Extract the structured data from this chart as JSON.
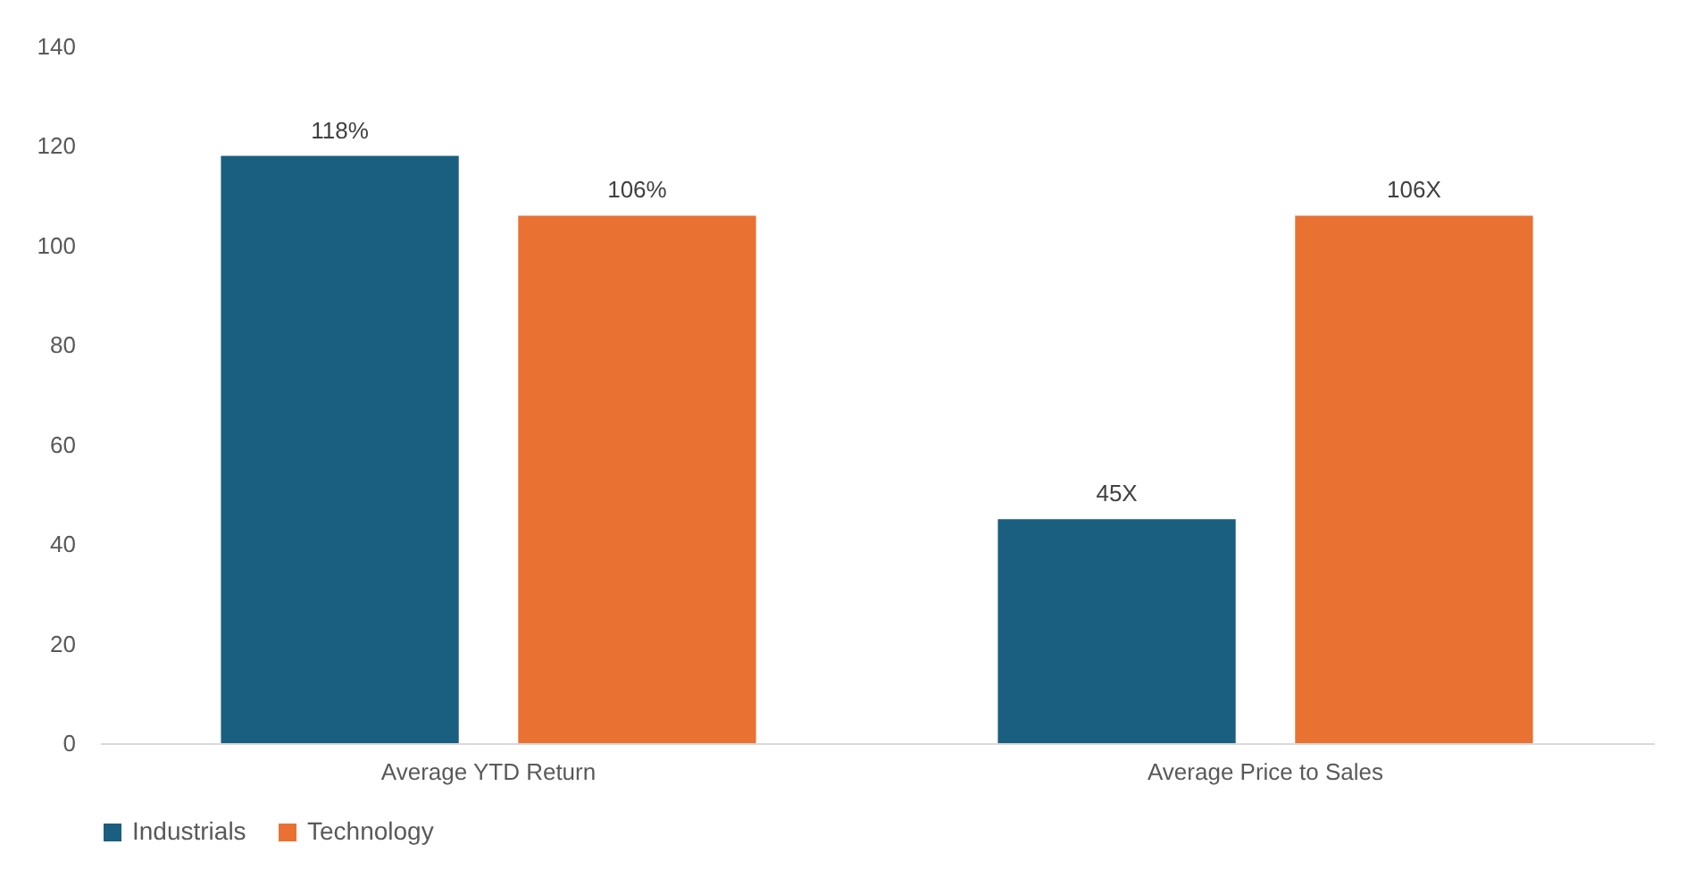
{
  "chart_data": {
    "type": "bar",
    "categories": [
      "Average YTD Return",
      "Average Price to Sales"
    ],
    "series": [
      {
        "name": "Industrials",
        "color": "#1a5f80",
        "values": [
          118,
          45
        ],
        "value_labels": [
          "118%",
          "45X"
        ]
      },
      {
        "name": "Technology",
        "color": "#e97132",
        "values": [
          106,
          106
        ],
        "value_labels": [
          "106%",
          "106X"
        ]
      }
    ],
    "ylim": [
      0,
      140
    ],
    "yticks": [
      0,
      20,
      40,
      60,
      80,
      100,
      120,
      140
    ],
    "grid": false,
    "legend": "bottom"
  }
}
